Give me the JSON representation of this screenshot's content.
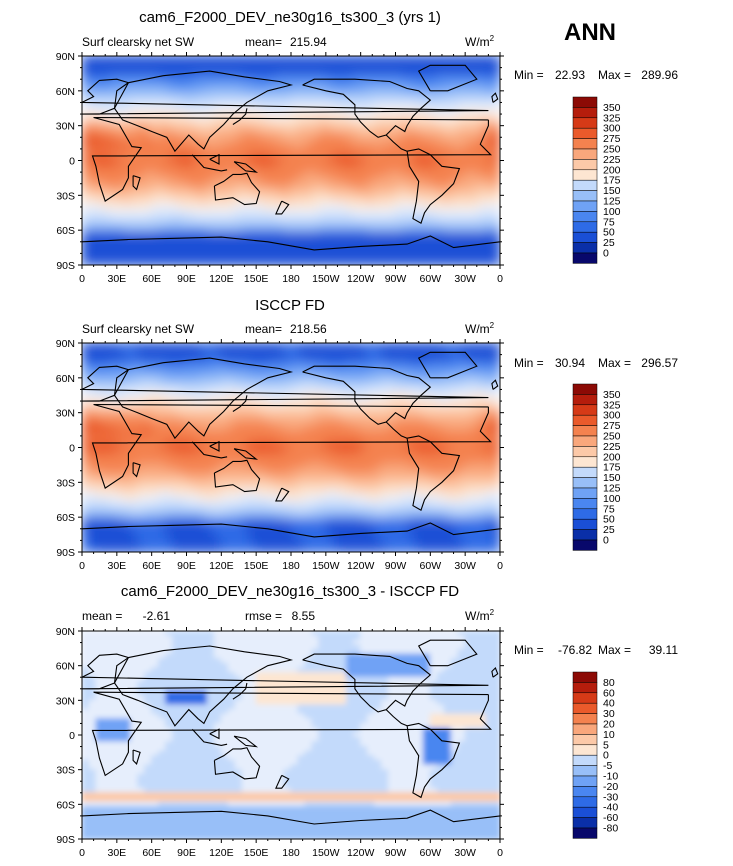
{
  "season": "ANN",
  "units_label": "W/m",
  "units_sup": "2",
  "colors": {
    "abs_scale": [
      "#08086b",
      "#0a2fa8",
      "#1a4fd6",
      "#2e6be6",
      "#4a86f0",
      "#6fa2f5",
      "#98bff8",
      "#c3dafb",
      "#e6eefc",
      "#fde6d2",
      "#fcc9a8",
      "#f9a77c",
      "#f4824f",
      "#ea5a2b",
      "#d63a17",
      "#b51d0c",
      "#8c0a05"
    ],
    "diff_scale": [
      "#08086b",
      "#0a2fa8",
      "#1a4fd6",
      "#2e6be6",
      "#4a86f0",
      "#6fa2f5",
      "#98bff8",
      "#c3dafb",
      "#e6eefc",
      "#fde6d2",
      "#fcc9a8",
      "#f9a77c",
      "#f4824f",
      "#ea5a2b",
      "#d63a17",
      "#b51d0c",
      "#8c0a05"
    ],
    "land": "#000000"
  },
  "chart_data": [
    {
      "type": "heatmap",
      "id": "model",
      "title": "cam6_F2000_DEV_ne30g16_ts300_3 (yrs 1)",
      "subtitle_left": "Surf clearsky net SW",
      "mean_label": "mean=",
      "mean": "215.94",
      "min_label": "Min =",
      "min": "22.93",
      "max_label": "Max =",
      "max": "289.96",
      "field": "abs",
      "colorbar_levels": [
        "350",
        "325",
        "300",
        "275",
        "250",
        "225",
        "200",
        "175",
        "150",
        "125",
        "100",
        "75",
        "50",
        "25",
        "0"
      ]
    },
    {
      "type": "heatmap",
      "id": "obs",
      "title": "ISCCP FD",
      "subtitle_left": "Surf clearsky net SW",
      "mean_label": "mean=",
      "mean": "218.56",
      "min_label": "Min =",
      "min": "30.94",
      "max_label": "Max =",
      "max": "296.57",
      "field": "abs",
      "colorbar_levels": [
        "350",
        "325",
        "300",
        "275",
        "250",
        "225",
        "200",
        "175",
        "150",
        "125",
        "100",
        "75",
        "50",
        "25",
        "0"
      ]
    },
    {
      "type": "heatmap",
      "id": "diff",
      "title": "cam6_F2000_DEV_ne30g16_ts300_3 - ISCCP FD",
      "subtitle_left": "",
      "mean_label": "mean =",
      "mean": "-2.61",
      "rmse_label": "rmse =",
      "rmse": "8.55",
      "min_label": "Min =",
      "min": "-76.82",
      "max_label": "Max =",
      "max": "39.11",
      "field": "diff",
      "colorbar_levels": [
        "80",
        "60",
        "40",
        "30",
        "20",
        "10",
        "5",
        "0",
        "-5",
        "-10",
        "-20",
        "-30",
        "-40",
        "-60",
        "-80"
      ]
    }
  ],
  "axes": {
    "lat_ticks": [
      "90N",
      "60N",
      "30N",
      "0",
      "30S",
      "60S",
      "90S"
    ],
    "lon_ticks": [
      "0",
      "30E",
      "60E",
      "90E",
      "120E",
      "150E",
      "180",
      "150W",
      "120W",
      "90W",
      "60W",
      "30W",
      "0"
    ],
    "lat_range": [
      -90,
      90
    ],
    "lon_range": [
      0,
      360
    ]
  }
}
